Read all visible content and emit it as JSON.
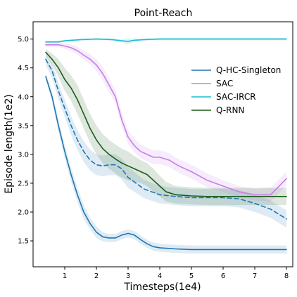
{
  "chart_data": {
    "type": "line",
    "title": "Point-Reach",
    "xlabel": "Timesteps(1e4)",
    "ylabel": "Episode length(1e2)",
    "xlim": [
      0.0,
      8.2
    ],
    "ylim": [
      1.05,
      5.3
    ],
    "xticks": [
      1,
      2,
      3,
      4,
      5,
      6,
      7,
      8
    ],
    "yticks": [
      1.5,
      2.0,
      2.5,
      3.0,
      3.5,
      4.0,
      4.5,
      5.0
    ],
    "legend_position": "upper right",
    "series": [
      {
        "name": "Q-HC-Singleton",
        "color": "#1f77b4",
        "style": "solid",
        "x": [
          0.4,
          0.6,
          0.8,
          1.0,
          1.2,
          1.4,
          1.6,
          1.8,
          2.0,
          2.2,
          2.4,
          2.6,
          2.8,
          3.0,
          3.2,
          3.4,
          3.6,
          3.8,
          4.0,
          4.5,
          5.0,
          6.0,
          7.0,
          8.0
        ],
        "y": [
          4.35,
          4.0,
          3.5,
          3.05,
          2.65,
          2.3,
          2.0,
          1.8,
          1.65,
          1.57,
          1.55,
          1.55,
          1.6,
          1.63,
          1.6,
          1.52,
          1.45,
          1.4,
          1.38,
          1.36,
          1.35,
          1.35,
          1.35,
          1.35
        ],
        "band": [
          0.05,
          0.08,
          0.1,
          0.12,
          0.12,
          0.12,
          0.12,
          0.1,
          0.1,
          0.08,
          0.07,
          0.07,
          0.07,
          0.07,
          0.07,
          0.07,
          0.07,
          0.07,
          0.07,
          0.07,
          0.07,
          0.07,
          0.07,
          0.07
        ]
      },
      {
        "name": "",
        "color": "#1f77b4",
        "style": "dashed",
        "x": [
          0.4,
          0.6,
          0.8,
          1.0,
          1.2,
          1.4,
          1.6,
          1.8,
          2.0,
          2.2,
          2.4,
          2.6,
          2.8,
          3.0,
          3.5,
          4.0,
          4.5,
          5.0,
          5.5,
          6.0,
          6.5,
          7.0,
          7.5,
          8.0
        ],
        "y": [
          4.65,
          4.45,
          4.1,
          3.8,
          3.5,
          3.25,
          3.05,
          2.9,
          2.82,
          2.8,
          2.82,
          2.82,
          2.75,
          2.6,
          2.4,
          2.3,
          2.27,
          2.25,
          2.25,
          2.25,
          2.23,
          2.15,
          2.05,
          1.88
        ],
        "band": [
          0.1,
          0.12,
          0.14,
          0.15,
          0.16,
          0.17,
          0.18,
          0.18,
          0.18,
          0.18,
          0.18,
          0.18,
          0.18,
          0.18,
          0.16,
          0.15,
          0.15,
          0.15,
          0.15,
          0.15,
          0.15,
          0.15,
          0.15,
          0.15
        ]
      },
      {
        "name": "SAC",
        "color": "#c77ee8",
        "style": "solid",
        "x": [
          0.4,
          0.8,
          1.0,
          1.2,
          1.4,
          1.6,
          1.8,
          2.0,
          2.2,
          2.4,
          2.6,
          2.8,
          3.0,
          3.2,
          3.4,
          3.6,
          3.8,
          4.0,
          4.3,
          4.6,
          5.0,
          5.5,
          6.0,
          6.5,
          7.0,
          7.5,
          8.0
        ],
        "y": [
          4.9,
          4.9,
          4.88,
          4.85,
          4.8,
          4.72,
          4.65,
          4.55,
          4.4,
          4.2,
          4.0,
          3.6,
          3.3,
          3.15,
          3.05,
          3.0,
          2.95,
          2.95,
          2.9,
          2.8,
          2.7,
          2.55,
          2.45,
          2.35,
          2.3,
          2.3,
          2.58
        ],
        "band": [
          0.04,
          0.04,
          0.05,
          0.06,
          0.07,
          0.08,
          0.09,
          0.1,
          0.12,
          0.12,
          0.12,
          0.12,
          0.12,
          0.12,
          0.12,
          0.12,
          0.12,
          0.12,
          0.12,
          0.12,
          0.12,
          0.12,
          0.1,
          0.1,
          0.1,
          0.12,
          0.12
        ]
      },
      {
        "name": "SAC-IRCR",
        "color": "#17becf",
        "style": "solid",
        "x": [
          0.4,
          0.8,
          1.0,
          1.5,
          2.0,
          2.5,
          2.8,
          3.0,
          3.2,
          3.5,
          4.0,
          5.0,
          6.0,
          7.0,
          8.0
        ],
        "y": [
          4.95,
          4.95,
          4.97,
          4.99,
          5.0,
          4.99,
          4.97,
          4.96,
          4.98,
          4.99,
          5.0,
          5.0,
          5.0,
          5.0,
          5.0
        ],
        "band": [
          0.02,
          0.02,
          0.02,
          0.02,
          0.02,
          0.02,
          0.03,
          0.05,
          0.03,
          0.02,
          0.02,
          0.02,
          0.02,
          0.02,
          0.02
        ]
      },
      {
        "name": "Q-RNN",
        "color": "#1a5c1a",
        "style": "solid",
        "x": [
          0.4,
          0.6,
          0.8,
          1.0,
          1.2,
          1.4,
          1.6,
          1.8,
          2.0,
          2.2,
          2.4,
          2.6,
          2.8,
          3.0,
          3.2,
          3.4,
          3.6,
          3.8,
          4.0,
          4.2,
          4.5,
          5.0,
          5.5,
          6.0,
          6.5,
          7.0,
          7.5,
          8.0
        ],
        "y": [
          4.77,
          4.65,
          4.5,
          4.3,
          4.15,
          3.95,
          3.7,
          3.45,
          3.25,
          3.1,
          3.0,
          2.92,
          2.85,
          2.8,
          2.75,
          2.7,
          2.65,
          2.55,
          2.45,
          2.35,
          2.3,
          2.28,
          2.27,
          2.27,
          2.27,
          2.27,
          2.27,
          2.27
        ],
        "band": [
          0.05,
          0.1,
          0.15,
          0.2,
          0.22,
          0.25,
          0.25,
          0.25,
          0.25,
          0.25,
          0.25,
          0.25,
          0.25,
          0.25,
          0.22,
          0.2,
          0.2,
          0.2,
          0.18,
          0.17,
          0.15,
          0.15,
          0.15,
          0.15,
          0.15,
          0.15,
          0.15,
          0.15
        ]
      }
    ]
  }
}
